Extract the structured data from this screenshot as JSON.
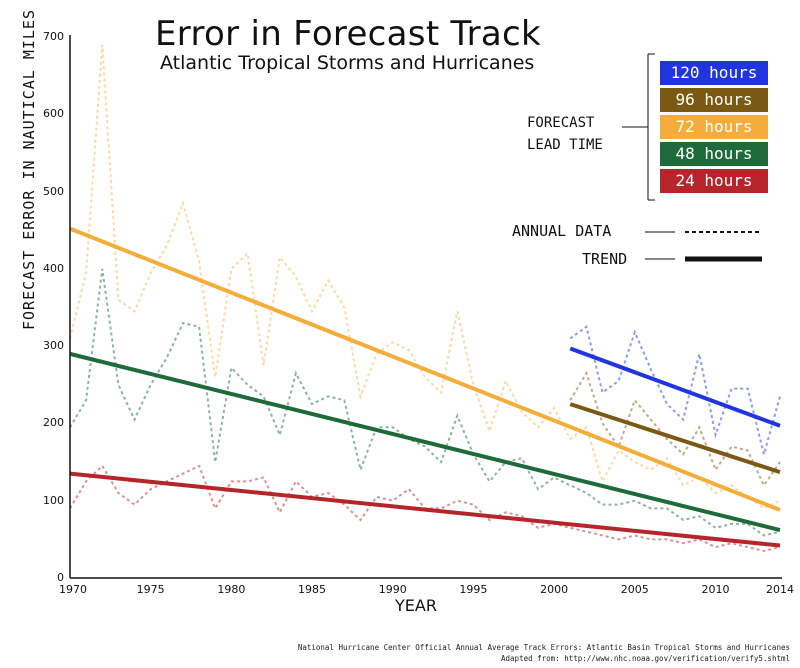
{
  "chart_data": {
    "type": "line",
    "title": "Error in Forecast Track",
    "subtitle": "Atlantic Tropical Storms and Hurricanes",
    "xlabel": "YEAR",
    "ylabel": "FORECAST ERROR IN NAUTICAL MILES",
    "xlim": [
      1970,
      2014
    ],
    "ylim": [
      0,
      700
    ],
    "x_ticks": [
      "1970",
      "1975",
      "1980",
      "1985",
      "1990",
      "1995",
      "2000",
      "2005",
      "2010",
      "2014"
    ],
    "y_ticks": [
      "0",
      "100",
      "200",
      "300",
      "400",
      "500",
      "600",
      "700"
    ],
    "legend": {
      "heading_line1": "FORECAST",
      "heading_line2": "LEAD TIME",
      "annual_label": "ANNUAL DATA",
      "trend_label": "TREND"
    },
    "series": [
      {
        "name": "120 hours",
        "color": "#2035e0",
        "x": [
          2001,
          2002,
          2003,
          2004,
          2005,
          2006,
          2007,
          2008,
          2009,
          2010,
          2011,
          2012,
          2013,
          2014
        ],
        "values": [
          310,
          325,
          240,
          255,
          318,
          270,
          225,
          205,
          290,
          185,
          245,
          245,
          160,
          235
        ],
        "trend": [
          [
            2001,
            297
          ],
          [
            2014,
            197
          ]
        ]
      },
      {
        "name": "96 hours",
        "color": "#7a5a12",
        "x": [
          2001,
          2002,
          2003,
          2004,
          2005,
          2006,
          2007,
          2008,
          2009,
          2010,
          2011,
          2012,
          2013,
          2014
        ],
        "values": [
          230,
          265,
          200,
          170,
          230,
          205,
          180,
          160,
          195,
          140,
          170,
          165,
          120,
          150
        ],
        "trend": [
          [
            2001,
            225
          ],
          [
            2014,
            137
          ]
        ]
      },
      {
        "name": "72 hours",
        "color": "#f4ad3a",
        "x": [
          1970,
          1971,
          1972,
          1973,
          1974,
          1975,
          1976,
          1977,
          1978,
          1979,
          1980,
          1981,
          1982,
          1983,
          1984,
          1985,
          1986,
          1987,
          1988,
          1989,
          1990,
          1991,
          1992,
          1993,
          1994,
          1995,
          1996,
          1997,
          1998,
          1999,
          2000,
          2001,
          2002,
          2003,
          2004,
          2005,
          2006,
          2007,
          2008,
          2009,
          2010,
          2011,
          2012,
          2013,
          2014
        ],
        "values": [
          310,
          395,
          690,
          360,
          345,
          395,
          430,
          485,
          410,
          260,
          400,
          420,
          275,
          415,
          390,
          345,
          385,
          350,
          235,
          290,
          305,
          295,
          260,
          240,
          345,
          250,
          190,
          255,
          215,
          195,
          220,
          180,
          195,
          125,
          165,
          150,
          140,
          155,
          120,
          130,
          110,
          120,
          105,
          90,
          100
        ],
        "trend": [
          [
            1970,
            452
          ],
          [
            2014,
            88
          ]
        ]
      },
      {
        "name": "48 hours",
        "color": "#1e6a3b",
        "x": [
          1970,
          1971,
          1972,
          1973,
          1974,
          1975,
          1976,
          1977,
          1978,
          1979,
          1980,
          1981,
          1982,
          1983,
          1984,
          1985,
          1986,
          1987,
          1988,
          1989,
          1990,
          1991,
          1992,
          1993,
          1994,
          1995,
          1996,
          1997,
          1998,
          1999,
          2000,
          2001,
          2002,
          2003,
          2004,
          2005,
          2006,
          2007,
          2008,
          2009,
          2010,
          2011,
          2012,
          2013,
          2014
        ],
        "values": [
          195,
          230,
          400,
          250,
          205,
          250,
          285,
          330,
          325,
          150,
          272,
          250,
          235,
          185,
          265,
          225,
          235,
          230,
          140,
          195,
          195,
          180,
          170,
          150,
          210,
          160,
          125,
          150,
          155,
          115,
          130,
          120,
          110,
          95,
          95,
          100,
          90,
          90,
          75,
          80,
          65,
          70,
          70,
          55,
          60
        ],
        "trend": [
          [
            1970,
            290
          ],
          [
            2014,
            62
          ]
        ]
      },
      {
        "name": "24 hours",
        "color": "#b5252a",
        "x": [
          1970,
          1971,
          1972,
          1973,
          1974,
          1975,
          1976,
          1977,
          1978,
          1979,
          1980,
          1981,
          1982,
          1983,
          1984,
          1985,
          1986,
          1987,
          1988,
          1989,
          1990,
          1991,
          1992,
          1993,
          1994,
          1995,
          1996,
          1997,
          1998,
          1999,
          2000,
          2001,
          2002,
          2003,
          2004,
          2005,
          2006,
          2007,
          2008,
          2009,
          2010,
          2011,
          2012,
          2013,
          2014
        ],
        "values": [
          90,
          125,
          145,
          110,
          95,
          115,
          125,
          135,
          145,
          90,
          125,
          125,
          130,
          85,
          125,
          105,
          110,
          95,
          75,
          105,
          100,
          115,
          90,
          90,
          100,
          95,
          75,
          85,
          80,
          65,
          70,
          65,
          60,
          55,
          50,
          55,
          50,
          50,
          45,
          50,
          40,
          45,
          40,
          35,
          40
        ],
        "trend": [
          [
            1970,
            135
          ],
          [
            2014,
            42
          ]
        ]
      }
    ]
  },
  "source": {
    "line1": "National Hurricane Center Official Annual Average Track Errors: Atlantic Basin Tropical Storms and Hurricanes",
    "line2": "Adapted from: http://www.nhc.noaa.gov/verification/verify5.shtml"
  }
}
